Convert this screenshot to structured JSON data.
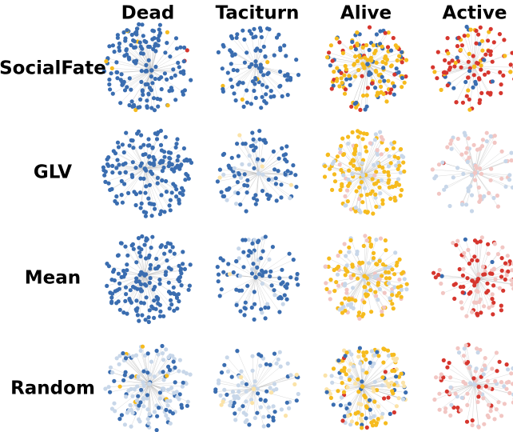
{
  "columns": [
    "Dead",
    "Taciturn",
    "Alive",
    "Active"
  ],
  "rows": [
    "SocialFate",
    "GLV",
    "Mean",
    "Random"
  ]
}
